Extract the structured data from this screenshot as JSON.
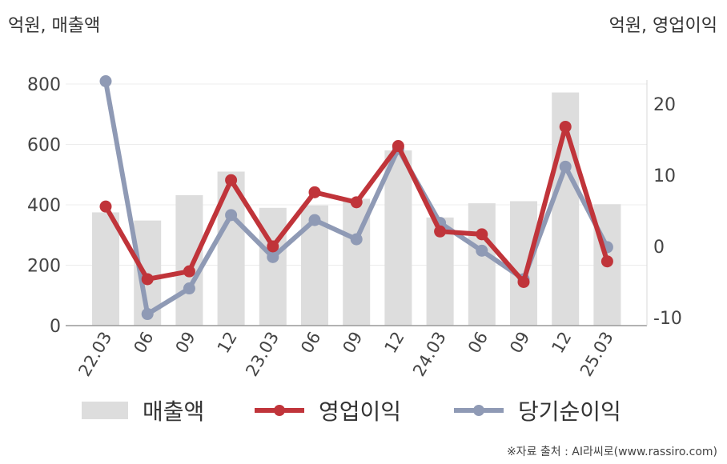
{
  "units": {
    "left": "억원, 매출액",
    "right": "억원, 영업이익"
  },
  "legend": [
    {
      "key": "sales",
      "label": "매출액"
    },
    {
      "key": "op",
      "label": "영업이익"
    },
    {
      "key": "net",
      "label": "당기순이익"
    }
  ],
  "source": "※자료 출처 : AI라씨로(www.rassiro.com)",
  "colors": {
    "bar": "#dddddd",
    "op": "#c0343a",
    "net": "#8f9ab5",
    "axis": "#999999",
    "grid": "#ececec",
    "text": "#444444"
  },
  "chart_data": {
    "type": "bar+line",
    "categories": [
      "22.03",
      "06",
      "09",
      "12",
      "23.03",
      "06",
      "09",
      "12",
      "24.03",
      "06",
      "09",
      "12",
      "25.03"
    ],
    "left_axis": {
      "min": 0,
      "max": 800,
      "ticks": [
        0,
        200,
        400,
        600,
        800
      ]
    },
    "right_axis": {
      "min": -10,
      "max": 20,
      "ticks": [
        -10,
        0,
        10,
        20
      ]
    },
    "series": [
      {
        "name": "매출액",
        "type": "bar",
        "axis": "left",
        "values": [
          375,
          348,
          432,
          510,
          390,
          398,
          420,
          580,
          358,
          405,
          412,
          772,
          402
        ]
      },
      {
        "name": "영업이익",
        "type": "line",
        "axis": "right",
        "values": [
          5.6,
          -4.6,
          -3.5,
          9.3,
          0,
          7.6,
          6.2,
          14.1,
          2.1,
          1.7,
          -5.0,
          16.8,
          -2.1
        ]
      },
      {
        "name": "당기순이익",
        "type": "line",
        "axis": "right",
        "values": [
          23.2,
          -9.5,
          -5.9,
          4.4,
          -1.5,
          3.7,
          1.0,
          13.7,
          3.3,
          -0.6,
          -4.6,
          11.2,
          -0.1
        ]
      }
    ]
  }
}
